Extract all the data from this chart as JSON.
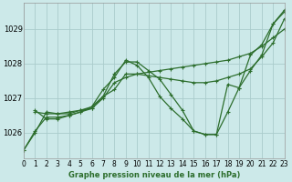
{
  "title": "Graphe pression niveau de la mer (hPa)",
  "background_color": "#cce9e9",
  "grid_color": "#aacccc",
  "line_color": "#2d6e2d",
  "series": [
    {
      "x": [
        0,
        1,
        2,
        3,
        4,
        5,
        6,
        7,
        8,
        9,
        10,
        11,
        12,
        13,
        14,
        15,
        16,
        17,
        18,
        19,
        20,
        21,
        22,
        23
      ],
      "y": [
        1025.5,
        1026.0,
        1026.6,
        1026.55,
        1026.55,
        1026.65,
        1026.7,
        1027.0,
        1027.45,
        1027.6,
        1027.7,
        1027.75,
        1027.8,
        1027.85,
        1027.9,
        1027.95,
        1028.0,
        1028.05,
        1028.1,
        1028.2,
        1028.3,
        1028.5,
        1028.75,
        1029.0
      ]
    },
    {
      "x": [
        1,
        2,
        3,
        4,
        5,
        6,
        7,
        8,
        9,
        10,
        11,
        12,
        13,
        14,
        15,
        16,
        17,
        18,
        19,
        20,
        21,
        22,
        23
      ],
      "y": [
        1026.6,
        1026.55,
        1026.55,
        1026.6,
        1026.65,
        1026.75,
        1027.05,
        1027.25,
        1027.7,
        1027.7,
        1027.65,
        1027.6,
        1027.55,
        1027.5,
        1027.45,
        1027.45,
        1027.5,
        1027.6,
        1027.7,
        1027.85,
        1028.2,
        1028.6,
        1029.3
      ]
    },
    {
      "x": [
        0,
        1,
        2,
        3,
        4,
        5,
        6,
        7,
        8,
        9,
        10,
        11,
        12,
        13,
        14,
        15,
        16,
        17,
        18,
        19,
        20,
        21,
        22,
        23
      ],
      "y": [
        1025.5,
        1026.05,
        1026.45,
        1026.45,
        1026.5,
        1026.6,
        1026.7,
        1027.05,
        1027.7,
        1028.05,
        1028.05,
        1027.8,
        1027.55,
        1027.1,
        1026.65,
        1026.05,
        1025.95,
        1025.95,
        1026.6,
        1027.3,
        1028.25,
        1028.55,
        1029.15,
        1029.5
      ]
    },
    {
      "x": [
        1,
        2,
        3,
        4,
        5,
        6,
        7,
        8,
        9,
        10,
        11,
        12,
        13,
        14,
        15,
        16,
        17,
        18,
        19,
        20,
        21,
        22,
        23
      ],
      "y": [
        1026.65,
        1026.4,
        1026.4,
        1026.5,
        1026.6,
        1026.75,
        1027.25,
        1027.6,
        1028.1,
        1027.95,
        1027.6,
        1027.05,
        1026.7,
        1026.4,
        1026.05,
        1025.95,
        1025.95,
        1027.4,
        1027.3,
        1027.8,
        1028.25,
        1029.15,
        1029.55
      ]
    }
  ],
  "xlim": [
    0,
    23
  ],
  "ylim": [
    1025.25,
    1029.75
  ],
  "yticks": [
    1026,
    1027,
    1028,
    1029
  ],
  "xticks": [
    0,
    1,
    2,
    3,
    4,
    5,
    6,
    7,
    8,
    9,
    10,
    11,
    12,
    13,
    14,
    15,
    16,
    17,
    18,
    19,
    20,
    21,
    22,
    23
  ],
  "xtick_labels": [
    "0",
    "1",
    "2",
    "3",
    "4",
    "5",
    "6",
    "7",
    "8",
    "9",
    "10",
    "11",
    "12",
    "13",
    "14",
    "15",
    "16",
    "17",
    "18",
    "19",
    "20",
    "21",
    "22",
    "23"
  ],
  "marker": "+",
  "markersize": 3.5,
  "linewidth": 0.9
}
